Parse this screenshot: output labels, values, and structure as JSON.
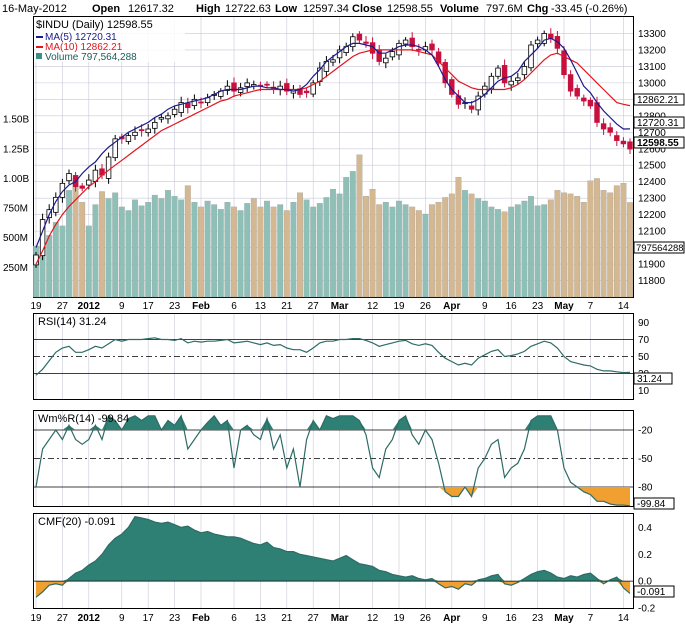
{
  "header": {
    "date": "16-May-2012",
    "open_label": "Open",
    "open": "12617.32",
    "high_label": "High",
    "high": "12722.63",
    "low_label": "Low",
    "low": "12597.34",
    "close_label": "Close",
    "close": "12598.55",
    "volume_label": "Volume",
    "volume": "797.6M",
    "chg_label": "Chg",
    "chg": "-33.45 (-0.26%)"
  },
  "chart_data": [
    {
      "type": "candlestick",
      "title": "$INDU (Daily) 12598.55",
      "legend": [
        {
          "label": "MA(5) 12720.31",
          "color": "#1a1a8c"
        },
        {
          "label": "MA(10) 12862.21",
          "color": "#e0161e"
        },
        {
          "label": "Volume 797,564,288",
          "color": "#3a8f88"
        }
      ],
      "legend_placement": "top-left",
      "ylim": [
        11700,
        13400
      ],
      "y_ticks": [
        "13300",
        "13200",
        "13100",
        "13000",
        "12900",
        "12800",
        "12700",
        "12600",
        "12500",
        "12400",
        "12300",
        "12200",
        "12100",
        "12000",
        "11900",
        "11800"
      ],
      "y_markers": [
        {
          "label": "12862.21",
          "value": 12862.21,
          "style": "outline"
        },
        {
          "label": "12720.31",
          "value": 12720.31,
          "style": "outline"
        },
        {
          "label": "12598.55",
          "value": 12598.55,
          "style": "bold"
        }
      ],
      "volume_ticks": [
        "1.50B",
        "1.25B",
        "1.00B",
        "750M",
        "500M",
        "250M"
      ],
      "volume_marker": "797564288",
      "volume_range": [
        0,
        1700000000
      ],
      "closes": [
        11955,
        12170,
        12230,
        12305,
        12390,
        12450,
        12370,
        12360,
        12410,
        12470,
        12440,
        12550,
        12660,
        12660,
        12680,
        12700,
        12710,
        12720,
        12760,
        12790,
        12800,
        12840,
        12880,
        12850,
        12900,
        12880,
        12910,
        12930,
        12950,
        12980,
        12950,
        12970,
        13000,
        12990,
        12980,
        12990,
        12960,
        12980,
        12950,
        12960,
        12930,
        12940,
        13000,
        13090,
        13130,
        13140,
        13200,
        13220,
        13280,
        13260,
        13240,
        13180,
        13130,
        13150,
        13190,
        13240,
        13260,
        13220,
        13200,
        13220,
        13200,
        13120,
        13000,
        12930,
        12870,
        12880,
        12840,
        12920,
        12980,
        13040,
        13090,
        13000,
        13010,
        13030,
        13100,
        13230,
        13260,
        13300,
        13270,
        13210,
        13050,
        12950,
        12920,
        12890,
        12860,
        12760,
        12720,
        12700,
        12650,
        12630,
        12598.55
      ],
      "ma5": [
        12000,
        12100,
        12200,
        12280,
        12340,
        12380,
        12400,
        12450,
        12490,
        12520,
        12570,
        12610,
        12640,
        12670,
        12700,
        12720,
        12740,
        12760,
        12790,
        12810,
        12840,
        12860,
        12870,
        12880,
        12890,
        12900,
        12910,
        12930,
        12950,
        12960,
        12960,
        12960,
        12970,
        12980,
        12980,
        12970,
        12970,
        12960,
        12960,
        12950,
        12960,
        12990,
        13040,
        13080,
        13130,
        13160,
        13190,
        13220,
        13240,
        13240,
        13230,
        13220,
        13180,
        13180,
        13200,
        13220,
        13230,
        13230,
        13220,
        13200,
        13170,
        13100,
        13020,
        12960,
        12920,
        12880,
        12880,
        12900,
        12930,
        12970,
        13010,
        13030,
        13040,
        13070,
        13130,
        13170,
        13210,
        13260,
        13270,
        13250,
        13210,
        13140,
        13060,
        12980,
        12940,
        12880,
        12830,
        12790,
        12750,
        12720,
        12720.31
      ],
      "ma10": [
        11900,
        11980,
        12070,
        12140,
        12200,
        12250,
        12290,
        12330,
        12370,
        12400,
        12440,
        12470,
        12500,
        12530,
        12560,
        12590,
        12620,
        12650,
        12680,
        12710,
        12730,
        12750,
        12770,
        12790,
        12810,
        12830,
        12850,
        12870,
        12890,
        12900,
        12920,
        12930,
        12940,
        12950,
        12960,
        12960,
        12960,
        12960,
        12960,
        12960,
        12960,
        12970,
        12990,
        13010,
        13040,
        13070,
        13100,
        13130,
        13160,
        13180,
        13190,
        13200,
        13200,
        13200,
        13200,
        13200,
        13200,
        13200,
        13190,
        13180,
        13170,
        13130,
        13090,
        13050,
        13010,
        12990,
        12970,
        12960,
        12960,
        12960,
        12960,
        12960,
        12970,
        12990,
        13020,
        13060,
        13100,
        13140,
        13170,
        13180,
        13160,
        13140,
        13120,
        13080,
        13040,
        13000,
        12960,
        12920,
        12880,
        12870,
        12862.21
      ],
      "volumes_M": [
        430,
        430,
        520,
        630,
        600,
        900,
        1000,
        800,
        600,
        780,
        890,
        830,
        880,
        760,
        730,
        820,
        770,
        800,
        860,
        830,
        900,
        850,
        820,
        940,
        800,
        760,
        810,
        780,
        740,
        800,
        760,
        730,
        790,
        830,
        760,
        810,
        760,
        780,
        730,
        800,
        880,
        820,
        760,
        790,
        840,
        910,
        870,
        1010,
        1060,
        1200,
        850,
        910,
        780,
        800,
        760,
        810,
        780,
        760,
        730,
        700,
        780,
        800,
        840,
        870,
        1010,
        900,
        870,
        830,
        810,
        760,
        740,
        720,
        760,
        780,
        810,
        850,
        770,
        780,
        820,
        900,
        880,
        870,
        850,
        800,
        980,
        1000,
        900,
        880,
        940,
        960,
        797.6
      ],
      "x_ticks": [
        "19",
        "27",
        "2012",
        "9",
        "17",
        "23",
        "Feb",
        "6",
        "13",
        "21",
        "27",
        "Mar",
        "12",
        "19",
        "26",
        "Apr",
        "9",
        "16",
        "23",
        "May",
        "7",
        "14"
      ]
    },
    {
      "type": "line",
      "title": "RSI(14) 31.24",
      "ylim": [
        0,
        100
      ],
      "y_ticks": [
        "90",
        "70",
        "50",
        "30",
        "10"
      ],
      "reference_lines": [
        70,
        50,
        30
      ],
      "marker": "31.24",
      "values": [
        28,
        35,
        45,
        55,
        60,
        62,
        55,
        55,
        58,
        62,
        60,
        65,
        70,
        68,
        70,
        70,
        70,
        71,
        72,
        70,
        70,
        69,
        71,
        66,
        68,
        67,
        68,
        68,
        69,
        70,
        66,
        67,
        68,
        66,
        64,
        66,
        63,
        64,
        60,
        58,
        58,
        55,
        60,
        66,
        68,
        68,
        70,
        70,
        71,
        71,
        69,
        66,
        62,
        64,
        66,
        68,
        69,
        65,
        63,
        65,
        63,
        55,
        48,
        44,
        40,
        42,
        40,
        48,
        52,
        56,
        58,
        50,
        51,
        53,
        56,
        62,
        65,
        68,
        66,
        60,
        50,
        44,
        42,
        40,
        39,
        35,
        33,
        33,
        32,
        31,
        31.24
      ]
    },
    {
      "type": "area",
      "title": "Wm%R(14) -99.84",
      "ylim": [
        -100,
        0
      ],
      "y_ticks": [
        "-20",
        "-50",
        "-80"
      ],
      "reference_lines": [
        -20,
        -50,
        -80
      ],
      "marker": "-99.84",
      "values": [
        -80,
        -40,
        -30,
        -20,
        -30,
        -15,
        -30,
        -35,
        -30,
        -15,
        -30,
        -5,
        -10,
        -20,
        -8,
        -5,
        -10,
        -5,
        -5,
        -20,
        -10,
        -15,
        -5,
        -40,
        -30,
        -20,
        -12,
        -5,
        -15,
        -10,
        -60,
        -20,
        -15,
        -25,
        -30,
        -8,
        -40,
        -25,
        -60,
        -40,
        -80,
        -30,
        -10,
        -20,
        -5,
        -8,
        -5,
        -5,
        -5,
        -10,
        -25,
        -60,
        -70,
        -40,
        -30,
        -10,
        -5,
        -25,
        -35,
        -20,
        -30,
        -55,
        -85,
        -90,
        -90,
        -80,
        -90,
        -60,
        -50,
        -35,
        -30,
        -70,
        -60,
        -55,
        -40,
        -10,
        -5,
        -5,
        -5,
        -20,
        -60,
        -75,
        -80,
        -85,
        -88,
        -95,
        -95,
        -98,
        -99,
        -99,
        -99.84
      ]
    },
    {
      "type": "area",
      "title": "CMF(20) -0.091",
      "ylim": [
        -0.2,
        0.5
      ],
      "y_ticks": [
        "0.4",
        "0.2",
        "0.0",
        "-0.2"
      ],
      "reference_lines": [
        0
      ],
      "marker": "-0.091",
      "values": [
        -0.12,
        -0.08,
        -0.03,
        -0.02,
        -0.03,
        0.02,
        0.06,
        0.08,
        0.12,
        0.15,
        0.2,
        0.27,
        0.32,
        0.35,
        0.4,
        0.48,
        0.47,
        0.46,
        0.44,
        0.43,
        0.44,
        0.42,
        0.4,
        0.41,
        0.38,
        0.36,
        0.37,
        0.35,
        0.34,
        0.33,
        0.33,
        0.32,
        0.3,
        0.28,
        0.27,
        0.29,
        0.25,
        0.24,
        0.22,
        0.22,
        0.2,
        0.19,
        0.18,
        0.17,
        0.16,
        0.15,
        0.17,
        0.19,
        0.16,
        0.13,
        0.12,
        0.11,
        0.08,
        0.07,
        0.05,
        0.04,
        0.03,
        0.04,
        0.02,
        0.01,
        0.02,
        -0.02,
        -0.05,
        -0.04,
        -0.06,
        -0.02,
        -0.03,
        0.01,
        0.02,
        0.04,
        0.05,
        -0.02,
        -0.03,
        -0.01,
        0.02,
        0.05,
        0.07,
        0.08,
        0.06,
        0.03,
        0.02,
        0.04,
        0.03,
        0.05,
        0.06,
        0.02,
        -0.02,
        0.01,
        0.03,
        -0.05,
        -0.091
      ]
    }
  ],
  "colors": {
    "up_candle": "#000000",
    "down_candle": "#c8103e",
    "volume_up": "#8fc0b8",
    "volume_down": "#d4b892",
    "indicator_fill": "#2e8074",
    "negative_fill": "#f0a030",
    "grid": "#c8c8d8",
    "tick_text": "#000000"
  }
}
